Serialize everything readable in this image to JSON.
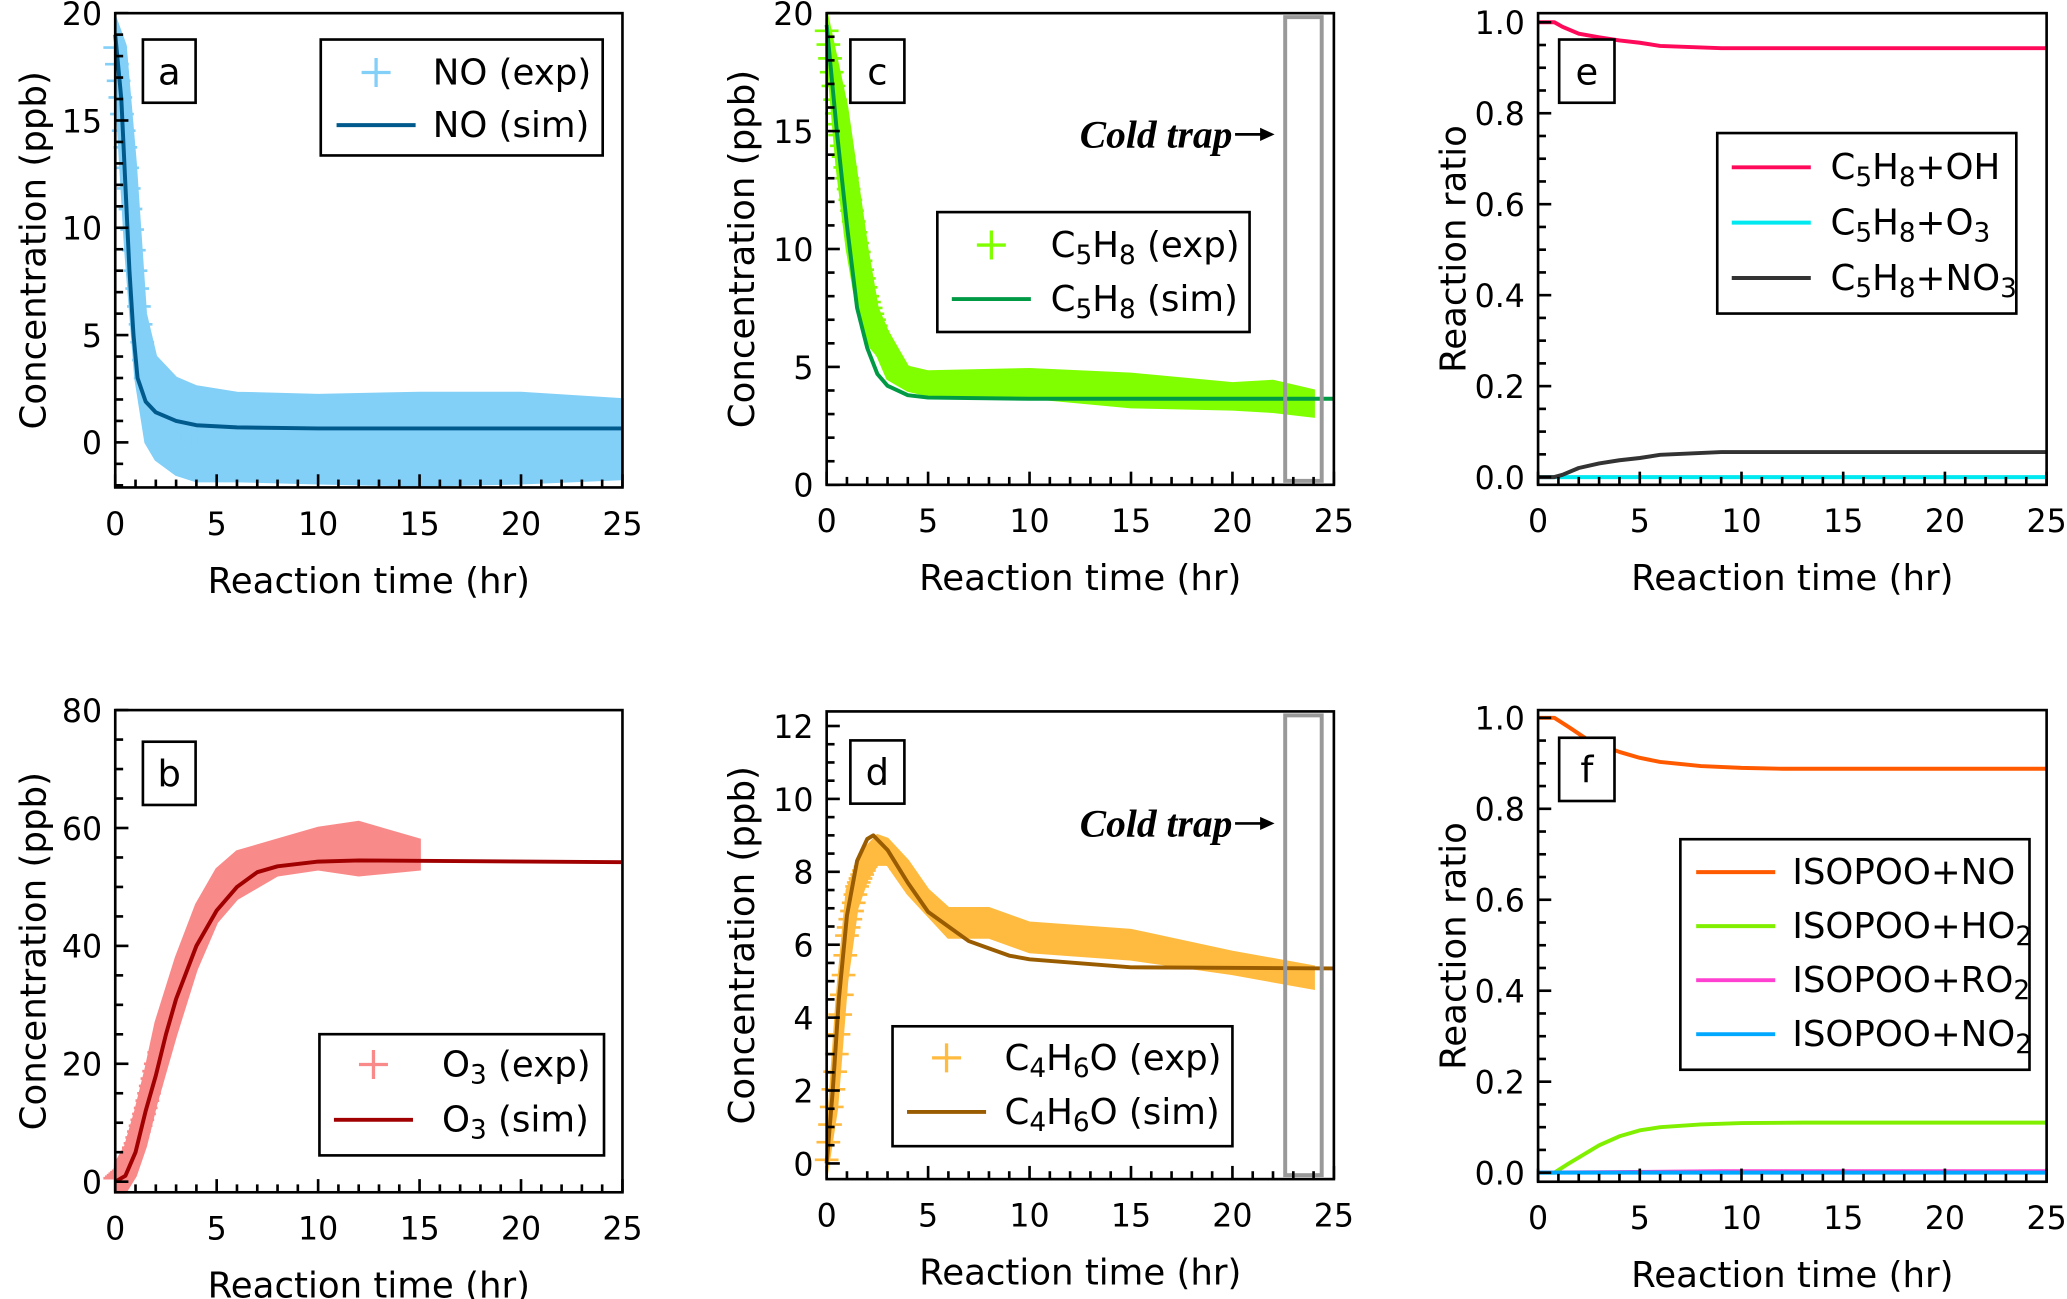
{
  "chart_data": [
    {
      "panel": "a",
      "type": "line",
      "xlabel": "Reaction time (hr)",
      "ylabel": "Concentration (ppb)",
      "xlim": [
        0,
        25
      ],
      "ylim": [
        -2.1,
        20
      ],
      "xticks": [
        0,
        5,
        10,
        15,
        20,
        25
      ],
      "yticks": [
        0,
        5,
        10,
        15,
        20
      ],
      "yminor": 1,
      "legend_placement": "top-right",
      "series": [
        {
          "name": "NO (exp)",
          "kind": "exp",
          "color": "#82cff8",
          "x": [
            0,
            0.5,
            1,
            1.5,
            2,
            3,
            4,
            6,
            10,
            15,
            20,
            25
          ],
          "low": [
            17,
            9,
            3,
            0,
            -0.8,
            -1.5,
            -1.8,
            -1.8,
            -1.9,
            -2,
            -1.9,
            -1.7
          ],
          "high": [
            19.8,
            18.5,
            13,
            6,
            4,
            3,
            2.6,
            2.3,
            2.2,
            2.3,
            2.3,
            2.0
          ]
        },
        {
          "name": "NO (sim)",
          "kind": "sim",
          "color": "#005a8c",
          "points": [
            [
              0,
              19
            ],
            [
              0.3,
              16
            ],
            [
              0.5,
              12
            ],
            [
              0.7,
              8
            ],
            [
              0.9,
              5
            ],
            [
              1.1,
              3
            ],
            [
              1.5,
              1.9
            ],
            [
              2,
              1.4
            ],
            [
              3,
              1.0
            ],
            [
              4,
              0.8
            ],
            [
              6,
              0.7
            ],
            [
              10,
              0.65
            ],
            [
              25,
              0.65
            ]
          ]
        }
      ]
    },
    {
      "panel": "b",
      "type": "line",
      "xlabel": "Reaction time (hr)",
      "ylabel": "Concentration (ppb)",
      "xlim": [
        0,
        25
      ],
      "ylim": [
        -1.8,
        80
      ],
      "xticks": [
        0,
        5,
        10,
        15,
        20,
        25
      ],
      "yticks": [
        0,
        20,
        40,
        60,
        80
      ],
      "yminor": 5,
      "legend_placement": "bottom-right",
      "series": [
        {
          "name": "O3 (exp)",
          "kind": "exp",
          "color": "#f98a8a",
          "x": [
            0,
            0.5,
            1,
            1.5,
            2,
            3,
            4,
            5,
            6,
            8,
            10,
            12,
            15
          ],
          "low": [
            -1.8,
            -1.8,
            1,
            6,
            13,
            25,
            36,
            44,
            48,
            52,
            53,
            52,
            53
          ],
          "high": [
            3,
            6,
            12,
            19,
            27,
            38,
            47,
            53,
            56,
            58,
            60,
            61,
            58
          ]
        },
        {
          "name": "O3 (sim)",
          "kind": "sim",
          "color": "#a00000",
          "points": [
            [
              0,
              0
            ],
            [
              0.5,
              1
            ],
            [
              1,
              5
            ],
            [
              1.5,
              12
            ],
            [
              2,
              18
            ],
            [
              2.5,
              25
            ],
            [
              3,
              31
            ],
            [
              4,
              40
            ],
            [
              5,
              46
            ],
            [
              6,
              50
            ],
            [
              7,
              52.5
            ],
            [
              8,
              53.5
            ],
            [
              10,
              54.3
            ],
            [
              12,
              54.5
            ],
            [
              25,
              54.2
            ]
          ]
        }
      ]
    },
    {
      "panel": "c",
      "type": "line",
      "xlabel": "Reaction time (hr)",
      "ylabel": "Concentration (ppb)",
      "xlim": [
        0,
        25
      ],
      "ylim": [
        0,
        20
      ],
      "xticks": [
        0,
        5,
        10,
        15,
        20,
        25
      ],
      "yticks": [
        0,
        5,
        10,
        15,
        20
      ],
      "yminor": 1,
      "legend_placement": "center-right",
      "annotation": "Cold trap",
      "cold_trap_range": [
        22.6,
        24.4
      ],
      "series": [
        {
          "name": "C5H8 (exp)",
          "kind": "exp",
          "color": "#80ff00",
          "x": [
            0,
            0.5,
            1,
            1.5,
            2,
            2.5,
            3,
            4,
            5,
            10,
            15,
            20,
            22,
            24
          ],
          "low": [
            18.5,
            13.5,
            10,
            7.5,
            6,
            5.5,
            4.5,
            4,
            3.8,
            3.7,
            3.3,
            3.2,
            3.1,
            2.9
          ],
          "high": [
            20,
            18,
            16,
            13,
            10,
            7.5,
            6.5,
            5,
            4.8,
            4.9,
            4.7,
            4.3,
            4.4,
            4.0
          ]
        },
        {
          "name": "C5H8 (sim)",
          "kind": "sim",
          "color": "#009a44",
          "points": [
            [
              0,
              19.5
            ],
            [
              0.5,
              15
            ],
            [
              1,
              11
            ],
            [
              1.5,
              7.5
            ],
            [
              2,
              5.8
            ],
            [
              2.5,
              4.7
            ],
            [
              3,
              4.2
            ],
            [
              4,
              3.8
            ],
            [
              5,
              3.7
            ],
            [
              10,
              3.65
            ],
            [
              25,
              3.65
            ]
          ]
        }
      ]
    },
    {
      "panel": "d",
      "type": "line",
      "xlabel": "Reaction time (hr)",
      "ylabel": "Concentration (ppb)",
      "xlim": [
        0,
        25
      ],
      "ylim": [
        -0.43,
        12.4
      ],
      "xticks": [
        0,
        5,
        10,
        15,
        20,
        25
      ],
      "yticks": [
        0,
        2,
        4,
        6,
        8,
        10,
        12
      ],
      "yminor": 0.5,
      "legend_placement": "bottom-center",
      "annotation": "Cold trap",
      "cold_trap_range": [
        22.6,
        24.4
      ],
      "series": [
        {
          "name": "C4H6O (exp)",
          "kind": "exp",
          "color": "#ffbb40",
          "x": [
            0,
            0.5,
            1,
            1.5,
            2,
            2.5,
            3,
            4,
            5,
            6,
            8,
            10,
            15,
            20,
            24
          ],
          "low": [
            -0.3,
            1.5,
            5,
            7,
            7.8,
            8.2,
            8.2,
            7.4,
            6.8,
            6.2,
            6.2,
            5.8,
            5.6,
            5.2,
            4.8
          ],
          "high": [
            0.5,
            4.5,
            7.5,
            8.2,
            8.7,
            9,
            8.9,
            8.3,
            7.5,
            7.0,
            7.0,
            6.6,
            6.4,
            5.8,
            5.4
          ]
        },
        {
          "name": "C4H6O (sim)",
          "kind": "sim",
          "color": "#9a5c00",
          "points": [
            [
              0,
              0
            ],
            [
              0.3,
              2
            ],
            [
              0.6,
              4.5
            ],
            [
              1,
              6.8
            ],
            [
              1.5,
              8.3
            ],
            [
              2,
              8.9
            ],
            [
              2.3,
              9
            ],
            [
              3,
              8.6
            ],
            [
              4,
              7.7
            ],
            [
              5,
              6.9
            ],
            [
              6,
              6.5
            ],
            [
              7,
              6.1
            ],
            [
              8,
              5.9
            ],
            [
              9,
              5.7
            ],
            [
              10,
              5.6
            ],
            [
              15,
              5.38
            ],
            [
              25,
              5.35
            ]
          ]
        }
      ]
    },
    {
      "panel": "e",
      "type": "line",
      "xlabel": "Reaction time (hr)",
      "ylabel": "Reaction ratio",
      "xlim": [
        0,
        25
      ],
      "ylim": [
        -0.017,
        1.02
      ],
      "xticks": [
        0,
        5,
        10,
        15,
        20,
        25
      ],
      "yticks": [
        0.0,
        0.2,
        0.4,
        0.6,
        0.8,
        1.0
      ],
      "yminor": 0.05,
      "legend_placement": "center-right",
      "series": [
        {
          "name": "C5H8+OH",
          "kind": "sim",
          "color": "#ff0a5a",
          "points": [
            [
              0,
              1
            ],
            [
              0.8,
              1
            ],
            [
              1.2,
              0.99
            ],
            [
              2,
              0.975
            ],
            [
              3,
              0.967
            ],
            [
              4,
              0.96
            ],
            [
              5,
              0.955
            ],
            [
              6,
              0.948
            ],
            [
              9,
              0.943
            ],
            [
              25,
              0.943
            ]
          ]
        },
        {
          "name": "C5H8+O3",
          "kind": "sim",
          "color": "#00e8f0",
          "points": [
            [
              0,
              0
            ],
            [
              25,
              0
            ]
          ]
        },
        {
          "name": "C5H8+NO3",
          "kind": "sim",
          "color": "#333333",
          "points": [
            [
              0,
              0
            ],
            [
              0.8,
              0
            ],
            [
              1.2,
              0.005
            ],
            [
              2,
              0.02
            ],
            [
              3,
              0.03
            ],
            [
              4,
              0.037
            ],
            [
              5,
              0.042
            ],
            [
              6,
              0.049
            ],
            [
              9,
              0.055
            ],
            [
              25,
              0.055
            ]
          ]
        }
      ]
    },
    {
      "panel": "f",
      "type": "line",
      "xlabel": "Reaction time (hr)",
      "ylabel": "Reaction ratio",
      "xlim": [
        0,
        25
      ],
      "ylim": [
        -0.02,
        1.017
      ],
      "xticks": [
        0,
        5,
        10,
        15,
        20,
        25
      ],
      "yticks": [
        0.0,
        0.2,
        0.4,
        0.6,
        0.8,
        1.0
      ],
      "yminor": 0.05,
      "legend_placement": "center-right",
      "series": [
        {
          "name": "ISOPOO+NO",
          "kind": "sim",
          "color": "#ff5a00",
          "points": [
            [
              0,
              1
            ],
            [
              0.8,
              1
            ],
            [
              1.5,
              0.98
            ],
            [
              2.5,
              0.95
            ],
            [
              4,
              0.925
            ],
            [
              5,
              0.912
            ],
            [
              6,
              0.903
            ],
            [
              8,
              0.894
            ],
            [
              10,
              0.89
            ],
            [
              12,
              0.888
            ],
            [
              25,
              0.888
            ]
          ]
        },
        {
          "name": "ISOPOO+HO2",
          "kind": "sim",
          "color": "#80f000",
          "points": [
            [
              0,
              0
            ],
            [
              0.8,
              0
            ],
            [
              1.5,
              0.02
            ],
            [
              3,
              0.06
            ],
            [
              4,
              0.08
            ],
            [
              5,
              0.093
            ],
            [
              6,
              0.1
            ],
            [
              8,
              0.106
            ],
            [
              10,
              0.109
            ],
            [
              13,
              0.11
            ],
            [
              25,
              0.11
            ]
          ]
        },
        {
          "name": "ISOPOO+RO2",
          "kind": "sim",
          "color": "#ff40d0",
          "points": [
            [
              0,
              0
            ],
            [
              9,
              0.003
            ],
            [
              25,
              0.003
            ]
          ]
        },
        {
          "name": "ISOPOO+NO2",
          "kind": "sim",
          "color": "#00a8ff",
          "points": [
            [
              0,
              0
            ],
            [
              25,
              0
            ]
          ]
        }
      ]
    }
  ]
}
